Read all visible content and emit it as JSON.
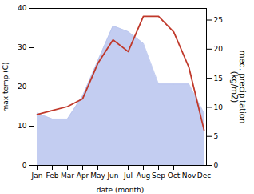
{
  "chart_data": {
    "type": "line",
    "categories": [
      "Jan",
      "Feb",
      "Mar",
      "Apr",
      "May",
      "Jun",
      "Jul",
      "Aug",
      "Sep",
      "Oct",
      "Nov",
      "Dec"
    ],
    "xlabel": "date (month)",
    "ylabel": "max temp (C)",
    "y2label": "med. precipitation\n(kg/m2)",
    "ylim": [
      0,
      40
    ],
    "yticks": [
      0,
      10,
      20,
      30,
      40
    ],
    "y2lim": [
      0,
      27
    ],
    "y2ticks": [
      0,
      5,
      10,
      15,
      20,
      25
    ],
    "series": [
      {
        "type": "area",
        "axis": "y2",
        "color": "#b8c4ee",
        "values": [
          9,
          8,
          8,
          12,
          18,
          24,
          23,
          21,
          14,
          14,
          14,
          9
        ]
      },
      {
        "type": "line",
        "color": "#c0392b",
        "values": [
          13,
          14,
          15,
          17,
          26,
          32,
          29,
          38,
          38,
          34,
          25,
          9
        ]
      }
    ]
  }
}
